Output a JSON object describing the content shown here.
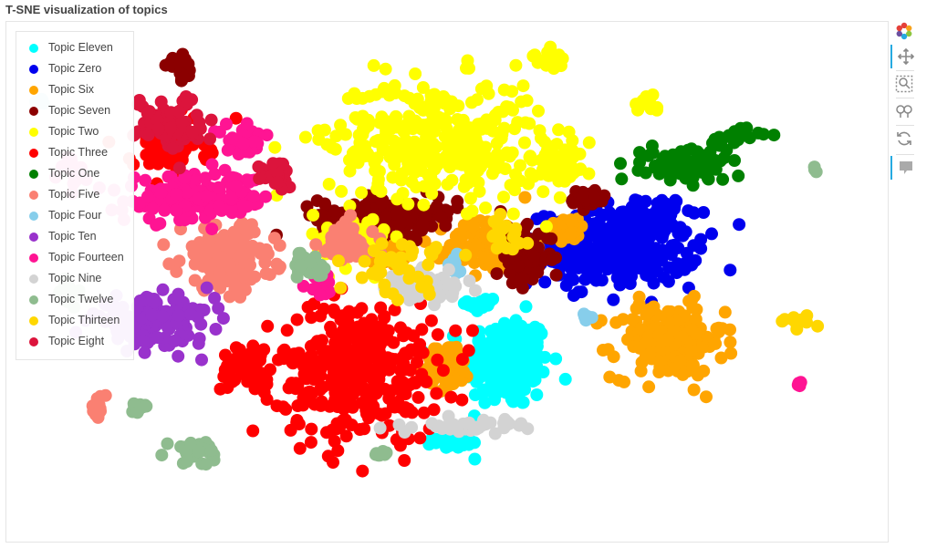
{
  "title": "T-SNE visualization of topics",
  "toolbar": {
    "tools": [
      {
        "name": "bokeh-logo-icon",
        "active": false
      },
      {
        "name": "pan-icon",
        "active": true
      },
      {
        "name": "box-zoom-icon",
        "active": false
      },
      {
        "name": "wheel-zoom-icon",
        "active": false
      },
      {
        "name": "reset-icon",
        "active": false
      },
      {
        "name": "hover-icon",
        "active": true
      }
    ]
  },
  "chart_data": {
    "type": "scatter",
    "title": "T-SNE visualization of topics",
    "xlabel": "",
    "ylabel": "",
    "axes_visible": false,
    "grid": false,
    "legend_position": "top-left",
    "xlim": [
      -100,
      100
    ],
    "ylim": [
      -60,
      60
    ],
    "series": [
      {
        "name": "Topic Eleven",
        "color": "#00ffff",
        "clusters": [
          {
            "x": 14,
            "y": -19,
            "rx": 9,
            "ry": 10,
            "n": 230
          },
          {
            "x": 1,
            "y": -38,
            "rx": 4,
            "ry": 1.2,
            "n": 35
          },
          {
            "x": 8,
            "y": -5,
            "rx": 3,
            "ry": 2,
            "n": 25
          }
        ]
      },
      {
        "name": "Topic Zero",
        "color": "#0000ee",
        "clusters": [
          {
            "x": 39,
            "y": 8,
            "rx": 18,
            "ry": 8,
            "n": 300
          },
          {
            "x": 19,
            "y": 8,
            "rx": 6,
            "ry": 3,
            "n": 40
          },
          {
            "x": 50,
            "y": 17,
            "rx": 5,
            "ry": 3,
            "n": 40
          }
        ]
      },
      {
        "name": "Topic Six",
        "color": "#ffa500",
        "clusters": [
          {
            "x": 52,
            "y": -14,
            "rx": 12,
            "ry": 8,
            "n": 200
          },
          {
            "x": 10,
            "y": 9,
            "rx": 9,
            "ry": 6,
            "n": 140
          },
          {
            "x": -15,
            "y": 7,
            "rx": 6,
            "ry": 3,
            "n": 50
          },
          {
            "x": 0,
            "y": -20,
            "rx": 5,
            "ry": 5,
            "n": 60
          },
          {
            "x": 28,
            "y": 13,
            "rx": 4,
            "ry": 3,
            "n": 35
          }
        ]
      },
      {
        "name": "Topic Seven",
        "color": "#8b0000",
        "clusters": [
          {
            "x": -14,
            "y": 16,
            "rx": 15,
            "ry": 4,
            "n": 150
          },
          {
            "x": 18,
            "y": 6,
            "rx": 6,
            "ry": 6,
            "n": 70
          },
          {
            "x": -63,
            "y": 51,
            "rx": 3,
            "ry": 2.5,
            "n": 25
          },
          {
            "x": 33,
            "y": 20,
            "rx": 4,
            "ry": 2,
            "n": 35
          }
        ]
      },
      {
        "name": "Topic Two",
        "color": "#ffff00",
        "clusters": [
          {
            "x": -3,
            "y": 34,
            "rx": 23,
            "ry": 13,
            "n": 340
          },
          {
            "x": 24,
            "y": 53,
            "rx": 3.5,
            "ry": 2,
            "n": 20
          },
          {
            "x": 47,
            "y": 43,
            "rx": 3,
            "ry": 2,
            "n": 15
          },
          {
            "x": 26,
            "y": 28,
            "rx": 6,
            "ry": 6,
            "n": 50
          },
          {
            "x": -23,
            "y": 10,
            "rx": 8,
            "ry": 6,
            "n": 40
          }
        ]
      },
      {
        "name": "Topic Three",
        "color": "#ff0000",
        "clusters": [
          {
            "x": -21,
            "y": -21,
            "rx": 17,
            "ry": 15,
            "n": 340
          },
          {
            "x": -47,
            "y": -20,
            "rx": 6,
            "ry": 6,
            "n": 60
          },
          {
            "x": -66,
            "y": 32,
            "rx": 8,
            "ry": 6,
            "n": 60
          }
        ]
      },
      {
        "name": "Topic One",
        "color": "#008000",
        "clusters": [
          {
            "x": 56,
            "y": 28,
            "rx": 9,
            "ry": 3.5,
            "n": 110
          },
          {
            "x": 67,
            "y": 35,
            "rx": 6,
            "ry": 2,
            "n": 25
          }
        ]
      },
      {
        "name": "Topic Five",
        "color": "#fa8072",
        "clusters": [
          {
            "x": -52,
            "y": 6,
            "rx": 10,
            "ry": 7,
            "n": 170
          },
          {
            "x": -24,
            "y": 9,
            "rx": 6,
            "ry": 5,
            "n": 60
          },
          {
            "x": -83,
            "y": -30,
            "rx": 2,
            "ry": 2.5,
            "n": 15
          }
        ]
      },
      {
        "name": "Topic Four",
        "color": "#87ceeb",
        "clusters": [
          {
            "x": -96,
            "y": 43,
            "rx": 1.2,
            "ry": 0.8,
            "n": 6
          },
          {
            "x": 33,
            "y": -8,
            "rx": 1.5,
            "ry": 1,
            "n": 6
          },
          {
            "x": 2,
            "y": 4,
            "rx": 2,
            "ry": 2,
            "n": 8
          }
        ]
      },
      {
        "name": "Topic Ten",
        "color": "#9932cc",
        "clusters": [
          {
            "x": -70,
            "y": -9,
            "rx": 13,
            "ry": 5,
            "n": 140
          }
        ]
      },
      {
        "name": "Topic Fourteen",
        "color": "#ff1493",
        "clusters": [
          {
            "x": -59,
            "y": 20,
            "rx": 16,
            "ry": 5,
            "n": 170
          },
          {
            "x": -47,
            "y": 34,
            "rx": 5,
            "ry": 3,
            "n": 35
          },
          {
            "x": -89,
            "y": 27,
            "rx": 2.5,
            "ry": 3,
            "n": 20
          },
          {
            "x": 83,
            "y": -24,
            "rx": 1,
            "ry": 1,
            "n": 4
          },
          {
            "x": -30,
            "y": -1,
            "rx": 3,
            "ry": 2,
            "n": 15
          }
        ]
      },
      {
        "name": "Topic Nine",
        "color": "#d3d3d3",
        "clusters": [
          {
            "x": -5,
            "y": -1,
            "rx": 8,
            "ry": 3,
            "n": 70
          },
          {
            "x": 6,
            "y": -34,
            "rx": 12,
            "ry": 1.3,
            "n": 40
          }
        ]
      },
      {
        "name": "Topic Twelve",
        "color": "#8fbc8f",
        "clusters": [
          {
            "x": -33,
            "y": 4,
            "rx": 3,
            "ry": 3,
            "n": 30
          },
          {
            "x": -60,
            "y": -40,
            "rx": 5,
            "ry": 2.5,
            "n": 25
          },
          {
            "x": -90,
            "y": -2,
            "rx": 3,
            "ry": 2,
            "n": 20
          },
          {
            "x": -73,
            "y": -30,
            "rx": 2.5,
            "ry": 1.5,
            "n": 15
          },
          {
            "x": -16,
            "y": -41,
            "rx": 1.5,
            "ry": 1,
            "n": 8
          },
          {
            "x": 87,
            "y": 27,
            "rx": 0.8,
            "ry": 0.8,
            "n": 3
          }
        ]
      },
      {
        "name": "Topic Thirteen",
        "color": "#ffd700",
        "clusters": [
          {
            "x": 83,
            "y": -9,
            "rx": 3,
            "ry": 1.2,
            "n": 15
          },
          {
            "x": -12,
            "y": 4,
            "rx": 10,
            "ry": 6,
            "n": 40
          },
          {
            "x": 12,
            "y": 12,
            "rx": 6,
            "ry": 4,
            "n": 20
          }
        ]
      },
      {
        "name": "Topic Eight",
        "color": "#dc143c",
        "clusters": [
          {
            "x": -66,
            "y": 38,
            "rx": 7,
            "ry": 6,
            "n": 80
          },
          {
            "x": -40,
            "y": 26,
            "rx": 4,
            "ry": 3,
            "n": 25
          }
        ]
      }
    ]
  }
}
